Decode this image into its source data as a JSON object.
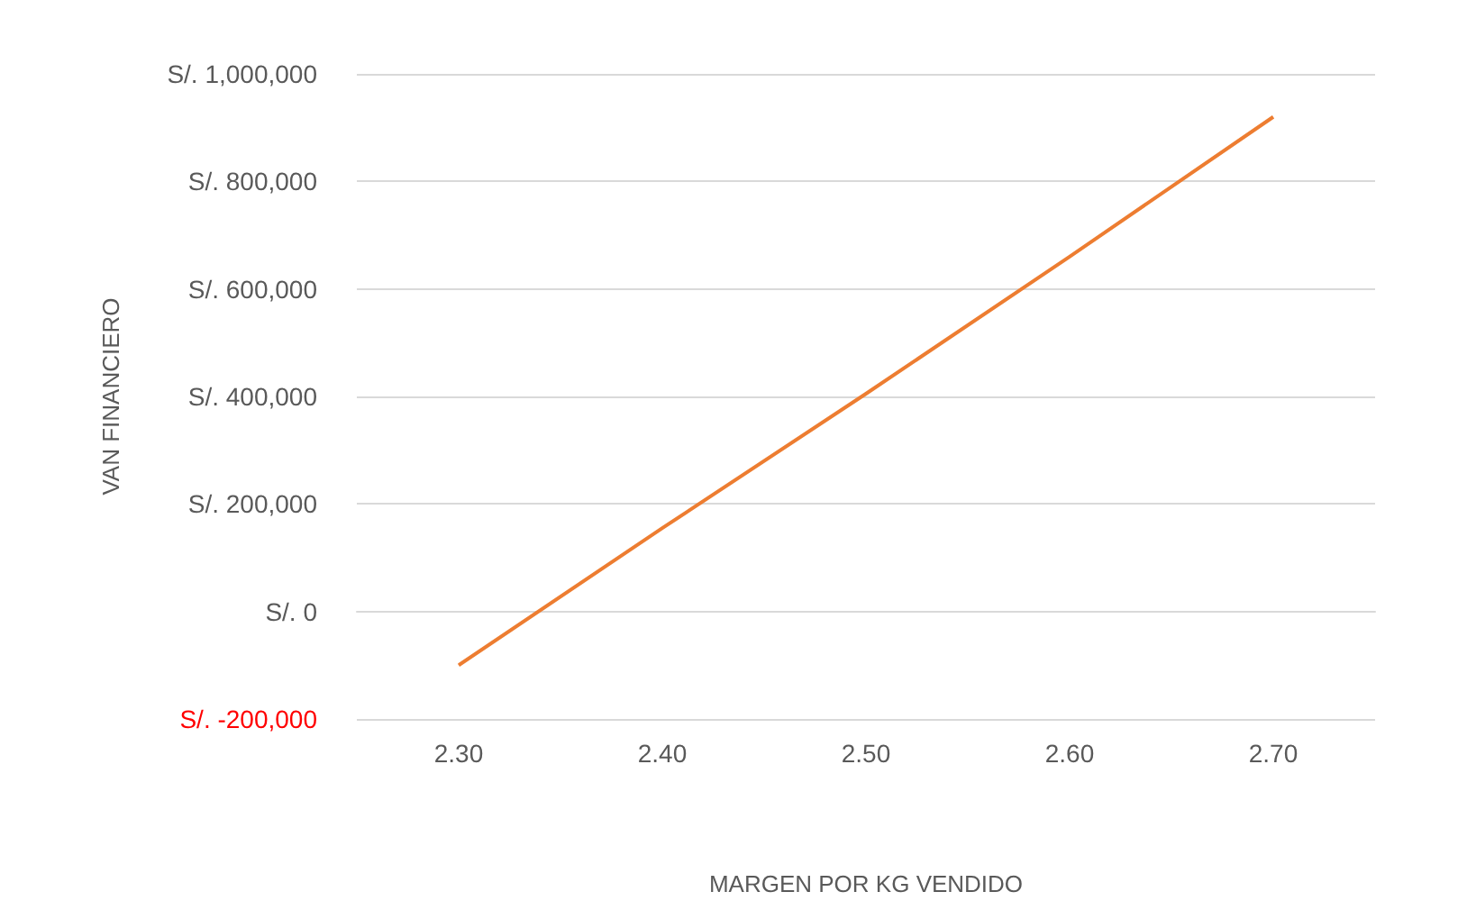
{
  "chart_data": {
    "type": "line",
    "xlabel": "MARGEN POR KG VENDIDO",
    "ylabel": "VAN FINANCIERO",
    "categories": [
      "2.30",
      "2.40",
      "2.50",
      "2.60",
      "2.70"
    ],
    "series": [
      {
        "color": "#ed7d31",
        "values": [
          -100000,
          155000,
          405000,
          660000,
          920000
        ]
      }
    ],
    "ylim": [
      -200000,
      1000000
    ],
    "yticks": [
      {
        "value": -200000,
        "label": "S/. -200,000"
      },
      {
        "value": 0,
        "label": "S/. 0"
      },
      {
        "value": 200000,
        "label": "S/. 200,000"
      },
      {
        "value": 400000,
        "label": "S/. 400,000"
      },
      {
        "value": 600000,
        "label": "S/. 600,000"
      },
      {
        "value": 800000,
        "label": "S/. 800,000"
      },
      {
        "value": 1000000,
        "label": "S/. 1,000,000"
      }
    ],
    "grid": "y",
    "marker": "none"
  }
}
